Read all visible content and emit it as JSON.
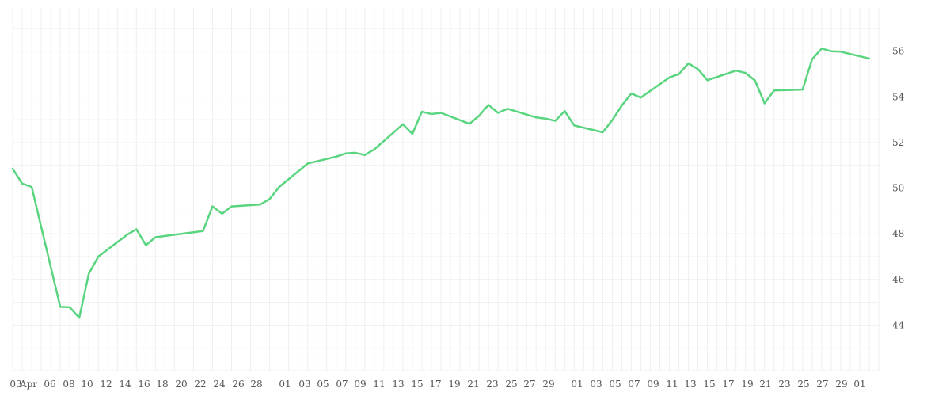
{
  "chart_data": {
    "type": "line",
    "color": "#59d47f",
    "grid": true,
    "x_axis_labels": [
      "03",
      "Apr",
      "06",
      "08",
      "10",
      "12",
      "14",
      "16",
      "18",
      "20",
      "22",
      "24",
      "26",
      "28",
      "01",
      "03",
      "05",
      "07",
      "09",
      "11",
      "13",
      "15",
      "17",
      "19",
      "21",
      "23",
      "25",
      "27",
      "29",
      "01",
      "03",
      "05",
      "07",
      "09",
      "11",
      "13",
      "15",
      "17",
      "19",
      "21",
      "23",
      "25",
      "27",
      "29",
      "01"
    ],
    "xlim": [
      "2024-04-02",
      "2024-07-02"
    ],
    "ylim": [
      42,
      57.9
    ],
    "yticks": [
      44,
      46,
      48,
      50,
      52,
      54,
      56
    ],
    "series": [
      {
        "x": [
          "2024-04-02",
          "2024-04-03",
          "2024-04-04",
          "2024-04-07",
          "2024-04-08",
          "2024-04-09",
          "2024-04-10",
          "2024-04-11",
          "2024-04-14",
          "2024-04-15",
          "2024-04-16",
          "2024-04-17",
          "2024-04-22",
          "2024-04-23",
          "2024-04-24",
          "2024-04-25",
          "2024-04-28",
          "2024-04-29",
          "2024-04-30",
          "2024-05-03",
          "2024-05-06",
          "2024-05-07",
          "2024-05-08",
          "2024-05-09",
          "2024-05-10",
          "2024-05-13",
          "2024-05-14",
          "2024-05-15",
          "2024-05-16",
          "2024-05-17",
          "2024-05-20",
          "2024-05-21",
          "2024-05-22",
          "2024-05-23",
          "2024-05-24",
          "2024-05-27",
          "2024-05-28",
          "2024-05-29",
          "2024-05-30",
          "2024-05-31",
          "2024-06-03",
          "2024-06-04",
          "2024-06-05",
          "2024-06-06",
          "2024-06-07",
          "2024-06-10",
          "2024-06-11",
          "2024-06-12",
          "2024-06-13",
          "2024-06-14",
          "2024-06-17",
          "2024-06-18",
          "2024-06-19",
          "2024-06-20",
          "2024-06-21",
          "2024-06-24",
          "2024-06-25",
          "2024-06-26",
          "2024-06-27",
          "2024-06-28",
          "2024-07-01"
        ],
        "y": [
          50.85,
          50.2,
          50.05,
          44.8,
          44.78,
          44.32,
          46.25,
          47.0,
          47.95,
          48.2,
          47.5,
          47.85,
          48.12,
          49.2,
          48.88,
          49.2,
          49.28,
          49.52,
          50.05,
          51.08,
          51.38,
          51.52,
          51.55,
          51.45,
          51.7,
          52.8,
          52.38,
          53.35,
          53.25,
          53.3,
          52.82,
          53.17,
          53.65,
          53.3,
          53.48,
          53.1,
          53.05,
          52.95,
          53.38,
          52.75,
          52.45,
          52.98,
          53.62,
          54.15,
          53.97,
          54.85,
          55.0,
          55.47,
          55.22,
          54.73,
          55.15,
          55.05,
          54.72,
          53.72,
          54.28,
          54.32,
          55.65,
          56.12,
          56.0,
          55.98,
          55.68
        ]
      }
    ]
  }
}
